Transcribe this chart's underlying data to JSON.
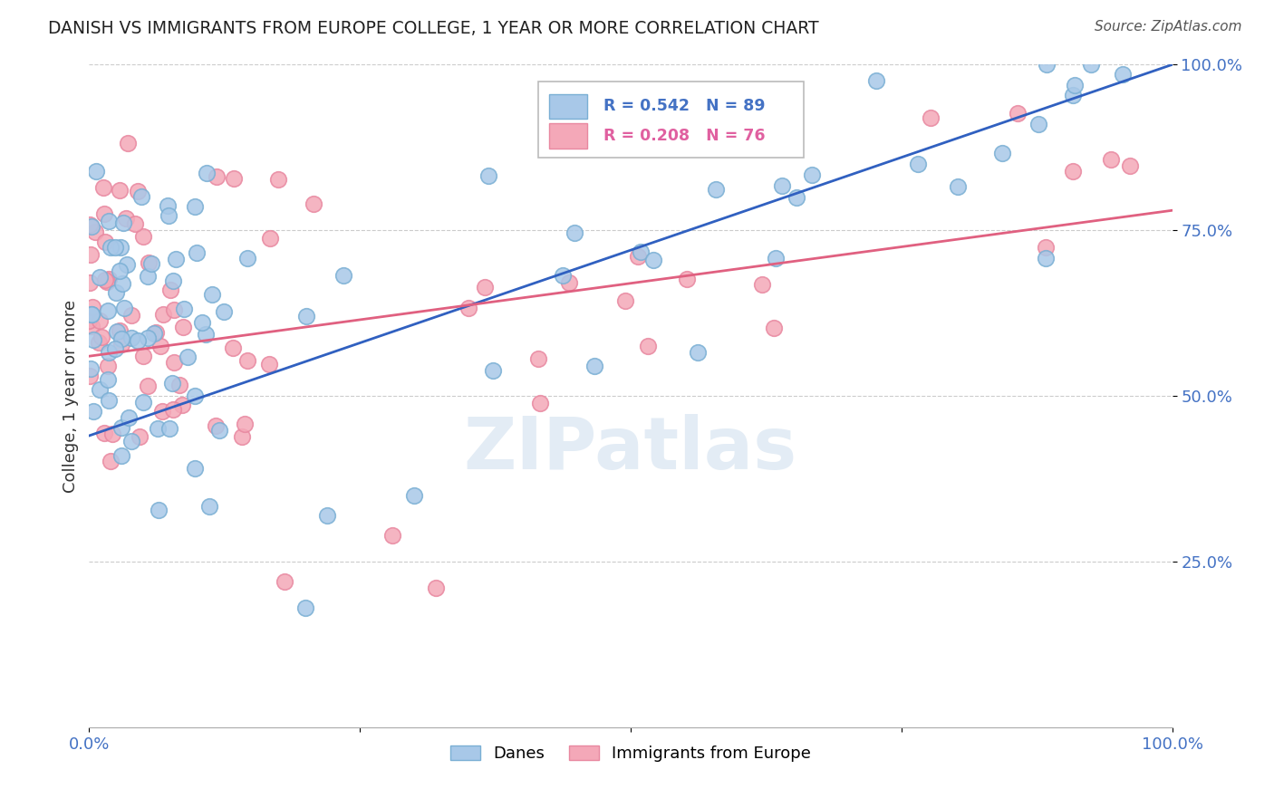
{
  "title": "DANISH VS IMMIGRANTS FROM EUROPE COLLEGE, 1 YEAR OR MORE CORRELATION CHART",
  "source_text": "Source: ZipAtlas.com",
  "ylabel": "College, 1 year or more",
  "watermark": "ZIPatlas",
  "legend_blue_label": "Danes",
  "legend_pink_label": "Immigrants from Europe",
  "legend_R_blue": "R = 0.542",
  "legend_N_blue": "N = 89",
  "legend_R_pink": "R = 0.208",
  "legend_N_pink": "N = 76",
  "blue_color": "#a8c8e8",
  "pink_color": "#f4a8b8",
  "blue_edge_color": "#7aafd4",
  "pink_edge_color": "#e888a0",
  "blue_line_color": "#3060c0",
  "pink_line_color": "#e06080",
  "blue_line_x": [
    0.0,
    1.0
  ],
  "blue_line_y": [
    0.44,
    1.0
  ],
  "pink_line_x": [
    0.0,
    1.0
  ],
  "pink_line_y": [
    0.56,
    0.78
  ],
  "xlim": [
    0.0,
    1.0
  ],
  "ylim": [
    0.0,
    1.0
  ],
  "yticks": [
    0.25,
    0.5,
    0.75,
    1.0
  ],
  "ytick_labels": [
    "25.0%",
    "50.0%",
    "75.0%",
    "100.0%"
  ],
  "xtick_positions": [
    0.0,
    0.25,
    0.5,
    0.75,
    1.0
  ],
  "xtick_labels": [
    "0.0%",
    "",
    "",
    "",
    "100.0%"
  ],
  "legend_box_color": "#4472c4",
  "legend_text_color_blue": "#4472c4",
  "legend_text_color_pink": "#e060a0",
  "right_tick_color": "#4472c4"
}
